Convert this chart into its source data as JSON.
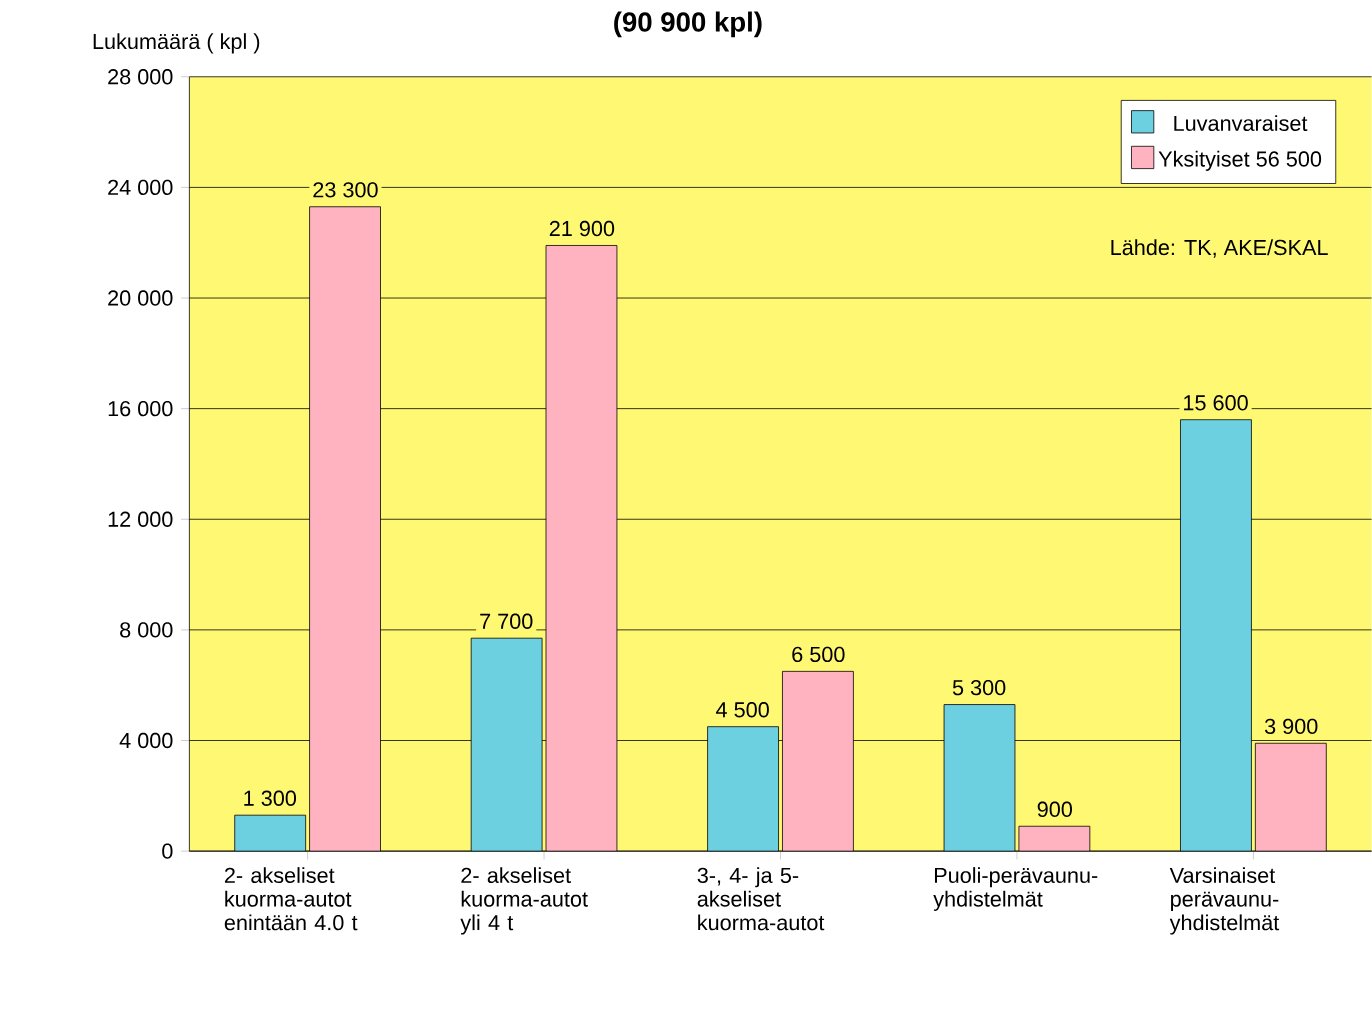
{
  "chart_data": {
    "type": "bar",
    "title": "(90 900 kpl)",
    "ylabel": "Lukumäärä ( kpl )",
    "categories": [
      "2- akseliset kuorma-autot enintään 4.0 t",
      "2- akseliset kuorma-autot yli 4 t",
      "3-, 4- ja 5- akseliset kuorma-autot",
      "Puoli-perävaunu-yhdistelmät",
      "Varsinaiset perävaunu-yhdistelmät"
    ],
    "series": [
      {
        "name": "Luvanvaraiset",
        "color": "#6dd0e0",
        "values": [
          1300,
          7700,
          4500,
          5300,
          15600
        ],
        "value_labels": [
          "1 300",
          "7 700",
          "4 500",
          "5 300",
          "15 600"
        ]
      },
      {
        "name": "Yksityiset 56 500",
        "color": "#ffb3c1",
        "values": [
          23300,
          21900,
          6500,
          900,
          3900
        ],
        "value_labels": [
          "23 300",
          "21 900",
          "6 500",
          "900",
          "3 900"
        ]
      }
    ],
    "ylim": [
      0,
      28000
    ],
    "yticks": [
      {
        "value": 0,
        "label": "0"
      },
      {
        "value": 4000,
        "label": "4 000"
      },
      {
        "value": 8000,
        "label": "8 000"
      },
      {
        "value": 12000,
        "label": "12 000"
      },
      {
        "value": 16000,
        "label": "16 000"
      },
      {
        "value": 20000,
        "label": "20 000"
      },
      {
        "value": 24000,
        "label": "24 000"
      },
      {
        "value": 28000,
        "label": "28 000"
      }
    ],
    "grid": "y",
    "legend": "top right",
    "annotations": [
      "Lähde: TK, AKE/SKAL"
    ]
  }
}
